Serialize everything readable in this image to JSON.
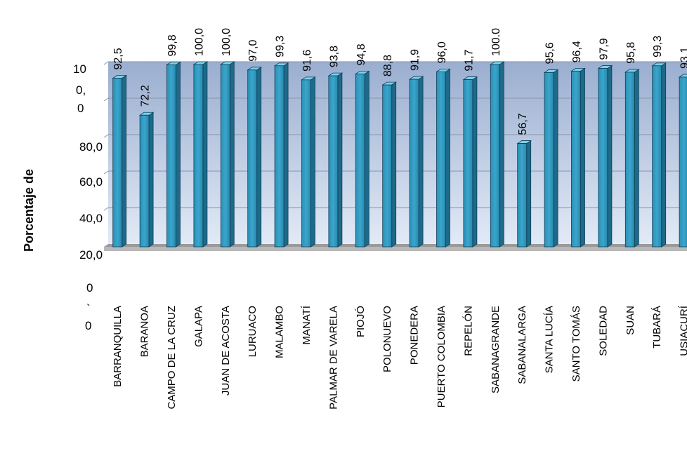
{
  "chart_data": {
    "type": "bar",
    "title": "",
    "xlabel": "",
    "ylabel": "Porcentaje de",
    "ylim": [
      0,
      100
    ],
    "grid": true,
    "legend": "none",
    "y_tick_labels": [
      "10",
      "0,",
      "0",
      "80,0",
      "60,0",
      "40,0",
      "20,0",
      "0",
      "`",
      "0"
    ],
    "categories": [
      "BARRANQUILLA",
      "BARANOA",
      "CAMPO DE LA CRUZ",
      "GALAPA",
      "JUAN DE ACOSTA",
      "LURUACO",
      "MALAMBO",
      "MANATÍ",
      "PALMAR DE VARELA",
      "PIOJÓ",
      "POLONUEVO",
      "PONEDERA",
      "PUERTO COLOMBIA",
      "REPELÓN",
      "SABANAGRANDE",
      "SABANALARGA",
      "SANTA LUCÍA",
      "SANTO TOMÁS",
      "SOLEDAD",
      "SUAN",
      "TUBARÁ",
      "USIACURÍ"
    ],
    "values": [
      92.5,
      72.2,
      99.8,
      100.0,
      100.0,
      97.0,
      99.3,
      91.6,
      93.8,
      94.8,
      88.8,
      91.9,
      96.0,
      91.7,
      100.0,
      56.7,
      95.6,
      96.4,
      97.9,
      95.8,
      99.3,
      93.1
    ],
    "data_labels": [
      "92,5",
      "72,2",
      "99,8",
      "100,0",
      "100,0",
      "97,0",
      "99,3",
      "91,6",
      "93,8",
      "94,8",
      "88,8",
      "91,9",
      "96,0",
      "91,7",
      "100.0",
      "56,7",
      "95,6",
      "96,4",
      "97,9",
      "95,8",
      "99,3",
      "93,1"
    ],
    "colors": {
      "bar_front": "#3aa6cc",
      "bar_side": "#1d6a8a",
      "bar_top": "#7fd0ea",
      "bar_edge": "#0d3f57",
      "plot_bg_top": "#9aaed0",
      "plot_bg_bottom": "#e2eaf6",
      "grid": "#8a94a8",
      "floor": "#9a9a9a"
    }
  }
}
